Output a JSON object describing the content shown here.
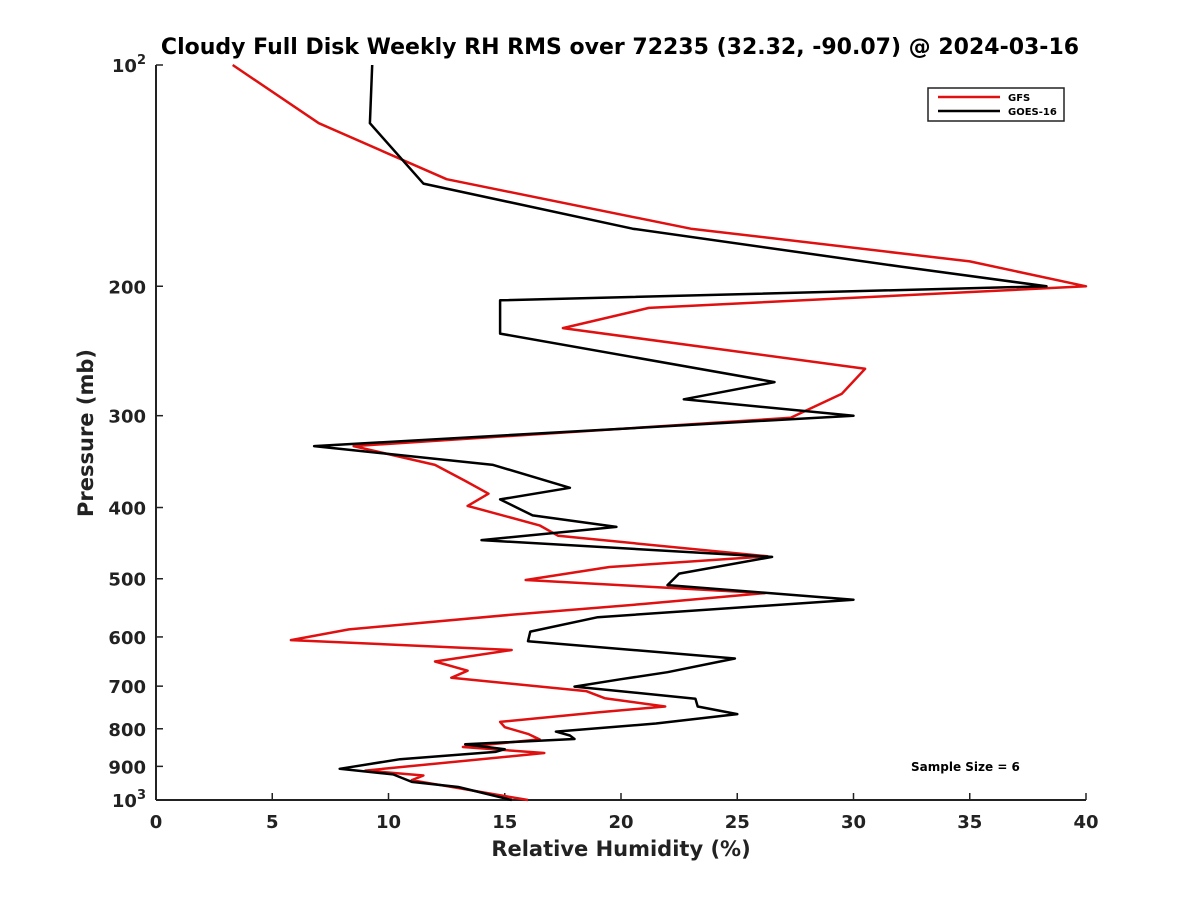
{
  "chart_data": {
    "type": "line",
    "title": "Cloudy Full Disk Weekly RH RMS over 72235 (32.32, -90.07) @ 2024-03-16",
    "xlabel": "Relative Humidity (%)",
    "ylabel": "Pressure (mb)",
    "xlim": [
      0,
      40
    ],
    "ylim": [
      100,
      1000
    ],
    "yscale": "log",
    "yaxis_reversed": true,
    "x_ticks": [
      0,
      5,
      10,
      15,
      20,
      25,
      30,
      35,
      40
    ],
    "y_ticks": [
      {
        "value": 100,
        "label": "10",
        "sup": "2"
      },
      {
        "value": 200,
        "label": "200"
      },
      {
        "value": 300,
        "label": "300"
      },
      {
        "value": 400,
        "label": "400"
      },
      {
        "value": 500,
        "label": "500"
      },
      {
        "value": 600,
        "label": "600"
      },
      {
        "value": 700,
        "label": "700"
      },
      {
        "value": 800,
        "label": "800"
      },
      {
        "value": 900,
        "label": "900"
      },
      {
        "value": 1000,
        "label": "10",
        "sup": "3"
      }
    ],
    "grid": false,
    "legend_position": "top-right",
    "annotation": "Sample Size = 6",
    "series": [
      {
        "name": "GFS",
        "color": "#e01010",
        "points": [
          [
            3.3,
            100
          ],
          [
            7.0,
            120
          ],
          [
            12.5,
            143
          ],
          [
            23.0,
            167
          ],
          [
            35.0,
            185
          ],
          [
            40.0,
            200
          ],
          [
            21.2,
            214
          ],
          [
            17.5,
            228
          ],
          [
            30.5,
            259
          ],
          [
            29.5,
            280
          ],
          [
            27.3,
            302
          ],
          [
            8.5,
            330
          ],
          [
            12.0,
            350
          ],
          [
            13.3,
            368
          ],
          [
            14.3,
            383
          ],
          [
            13.4,
            398
          ],
          [
            16.5,
            423
          ],
          [
            17.3,
            437
          ],
          [
            26.3,
            466
          ],
          [
            19.5,
            482
          ],
          [
            15.9,
            502
          ],
          [
            26.2,
            523
          ],
          [
            21.0,
            541
          ],
          [
            15.2,
            560
          ],
          [
            8.3,
            586
          ],
          [
            5.8,
            606
          ],
          [
            15.3,
            625
          ],
          [
            12.0,
            648
          ],
          [
            13.4,
            667
          ],
          [
            12.7,
            682
          ],
          [
            18.5,
            711
          ],
          [
            19.3,
            727
          ],
          [
            21.9,
            746
          ],
          [
            19.0,
            760
          ],
          [
            14.8,
            783
          ],
          [
            15.0,
            796
          ],
          [
            16.0,
            813
          ],
          [
            16.5,
            827
          ],
          [
            13.2,
            847
          ],
          [
            16.7,
            863
          ],
          [
            9.0,
            912
          ],
          [
            11.5,
            926
          ],
          [
            11.0,
            940
          ],
          [
            16.0,
            1000
          ]
        ]
      },
      {
        "name": "GOES-16",
        "color": "#000000",
        "points": [
          [
            9.3,
            100
          ],
          [
            9.2,
            120
          ],
          [
            11.5,
            145
          ],
          [
            20.5,
            167
          ],
          [
            32.0,
            188
          ],
          [
            38.3,
            200
          ],
          [
            14.8,
            209
          ],
          [
            14.8,
            232
          ],
          [
            26.6,
            270
          ],
          [
            22.7,
            285
          ],
          [
            30.0,
            300
          ],
          [
            6.8,
            330
          ],
          [
            14.5,
            350
          ],
          [
            17.8,
            376
          ],
          [
            14.8,
            390
          ],
          [
            16.2,
            410
          ],
          [
            19.8,
            425
          ],
          [
            14.0,
            443
          ],
          [
            26.5,
            467
          ],
          [
            22.5,
            492
          ],
          [
            22.0,
            510
          ],
          [
            30.0,
            534
          ],
          [
            19.0,
            564
          ],
          [
            16.1,
            590
          ],
          [
            16.0,
            608
          ],
          [
            24.9,
            642
          ],
          [
            22.0,
            670
          ],
          [
            20.0,
            685
          ],
          [
            18.0,
            701
          ],
          [
            23.2,
            728
          ],
          [
            23.3,
            746
          ],
          [
            25.0,
            764
          ],
          [
            21.5,
            787
          ],
          [
            17.2,
            807
          ],
          [
            17.8,
            817
          ],
          [
            18.0,
            826
          ],
          [
            13.3,
            840
          ],
          [
            15.0,
            853
          ],
          [
            14.6,
            860
          ],
          [
            10.5,
            880
          ],
          [
            7.9,
            907
          ],
          [
            10.2,
            923
          ],
          [
            11.0,
            945
          ],
          [
            13.0,
            960
          ],
          [
            15.3,
            1000
          ]
        ]
      }
    ]
  }
}
